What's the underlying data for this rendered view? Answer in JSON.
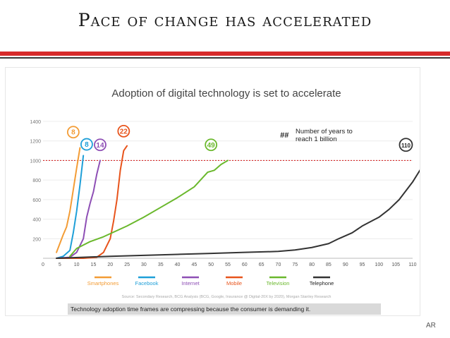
{
  "slide": {
    "title": "Pace of change has accelerated",
    "footnote": "Technology adoption time frames are compressing because the consumer is demanding it.",
    "monogram": "AR"
  },
  "colors": {
    "accent_red": "#d72a2a",
    "smartphones": "#f39c35",
    "facebook": "#1e9fd8",
    "internet": "#8e4fb5",
    "mobile": "#e8541c",
    "television": "#6ab82c",
    "telephone": "#333333"
  },
  "chart_data": {
    "type": "line",
    "title": "Adoption of digital technology is set to accelerate",
    "source": "Source: Secondary Research, BCG Analysis (BCG, Google, Insurance @ Digital-20X by 2020), Morgan Stanley Research",
    "xlim": [
      0,
      110
    ],
    "ylim": [
      0,
      1400
    ],
    "xticks": [
      0,
      5,
      10,
      15,
      20,
      25,
      30,
      35,
      40,
      45,
      50,
      55,
      60,
      65,
      70,
      75,
      80,
      85,
      90,
      95,
      100,
      105,
      110
    ],
    "yticks": [
      200,
      400,
      600,
      800,
      1000,
      1200,
      1400
    ],
    "ytick_labels": [
      "200",
      "400",
      "600",
      "800",
      "1000",
      "1200",
      "1400"
    ],
    "reference_line": 1000,
    "key_badge": "##",
    "key_text": [
      "Number of years to",
      "reach 1 billion"
    ],
    "legend_position": "bottom",
    "series": [
      {
        "name": "Smartphones",
        "badge": "8",
        "color": "#f39c35",
        "points": [
          [
            4,
            60
          ],
          [
            5,
            150
          ],
          [
            6,
            240
          ],
          [
            7,
            320
          ],
          [
            8,
            480
          ],
          [
            9,
            700
          ],
          [
            10,
            920
          ],
          [
            11,
            1130
          ]
        ]
      },
      {
        "name": "Facebook",
        "badge": "8",
        "color": "#1e9fd8",
        "points": [
          [
            4,
            0
          ],
          [
            6,
            20
          ],
          [
            8,
            80
          ],
          [
            9,
            260
          ],
          [
            10,
            480
          ],
          [
            11,
            750
          ],
          [
            12,
            1050
          ]
        ]
      },
      {
        "name": "Internet",
        "badge": "14",
        "color": "#8e4fb5",
        "points": [
          [
            4,
            0
          ],
          [
            8,
            10
          ],
          [
            10,
            60
          ],
          [
            12,
            200
          ],
          [
            13,
            420
          ],
          [
            14,
            560
          ],
          [
            15,
            680
          ],
          [
            16,
            860
          ],
          [
            17,
            1000
          ]
        ]
      },
      {
        "name": "Mobile",
        "badge": "22",
        "color": "#e8541c",
        "points": [
          [
            4,
            0
          ],
          [
            12,
            0
          ],
          [
            16,
            10
          ],
          [
            18,
            60
          ],
          [
            20,
            200
          ],
          [
            21,
            380
          ],
          [
            22,
            600
          ],
          [
            23,
            900
          ],
          [
            24,
            1100
          ],
          [
            25,
            1150
          ]
        ]
      },
      {
        "name": "Television",
        "badge": "49",
        "color": "#6ab82c",
        "points": [
          [
            8,
            20
          ],
          [
            10,
            100
          ],
          [
            14,
            170
          ],
          [
            18,
            220
          ],
          [
            25,
            330
          ],
          [
            30,
            420
          ],
          [
            35,
            520
          ],
          [
            40,
            620
          ],
          [
            45,
            730
          ],
          [
            49,
            880
          ],
          [
            51,
            900
          ],
          [
            53,
            960
          ],
          [
            55,
            1000
          ]
        ]
      },
      {
        "name": "Telephone",
        "badge": "110",
        "color": "#333333",
        "points": [
          [
            4,
            0
          ],
          [
            20,
            20
          ],
          [
            30,
            30
          ],
          [
            40,
            40
          ],
          [
            50,
            50
          ],
          [
            60,
            60
          ],
          [
            70,
            70
          ],
          [
            75,
            85
          ],
          [
            80,
            110
          ],
          [
            85,
            150
          ],
          [
            88,
            200
          ],
          [
            92,
            260
          ],
          [
            95,
            330
          ],
          [
            100,
            420
          ],
          [
            103,
            500
          ],
          [
            106,
            600
          ],
          [
            110,
            780
          ],
          [
            114,
            1000
          ]
        ]
      }
    ],
    "badge_values": [
      "8",
      "8",
      "14",
      "22",
      "49",
      "110"
    ]
  }
}
